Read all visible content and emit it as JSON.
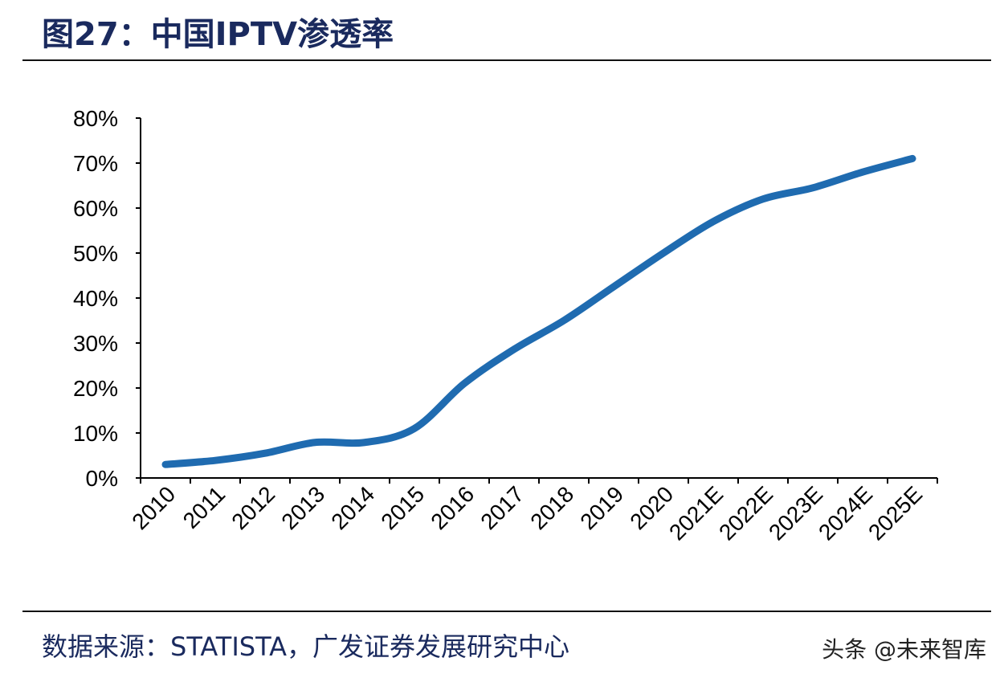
{
  "title": "图27：中国IPTV渗透率",
  "source": "数据来源：STATISTA，广发证券发展研究中心",
  "watermark": "头条 @未来智库",
  "chart_data": {
    "type": "line",
    "title": "",
    "xlabel": "",
    "ylabel": "",
    "ylim": [
      0,
      80
    ],
    "yticks": [
      "0%",
      "10%",
      "20%",
      "30%",
      "40%",
      "50%",
      "60%",
      "70%",
      "80%"
    ],
    "categories": [
      "2010",
      "2011",
      "2012",
      "2013",
      "2014",
      "2015",
      "2016",
      "2017",
      "2018",
      "2019",
      "2020",
      "2021E",
      "2022E",
      "2023E",
      "2024E",
      "2025E"
    ],
    "series": [
      {
        "values": [
          3,
          3.9,
          5.5,
          7.9,
          7.9,
          11,
          21,
          28.6,
          35,
          42.5,
          50,
          57,
          62,
          64.5,
          68,
          71
        ],
        "color": "#1f6bb0"
      }
    ],
    "grid": false,
    "smooth": true
  }
}
